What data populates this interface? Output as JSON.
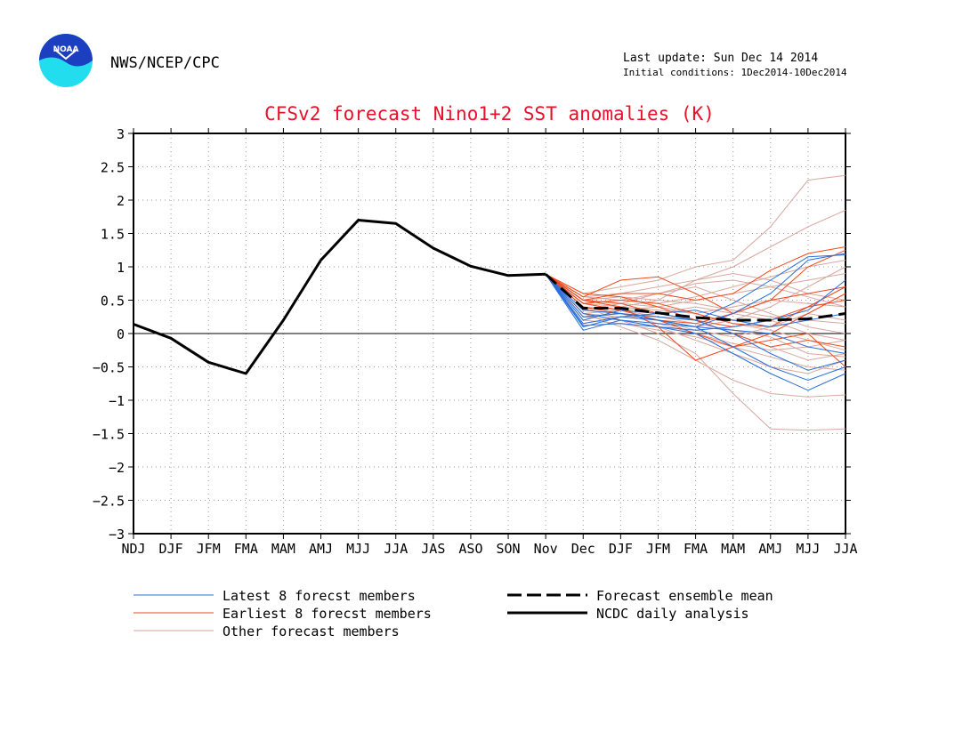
{
  "header": {
    "agency": "NWS/NCEP/CPC",
    "last_update": "Last update: Sun Dec 14 2014",
    "initial_conditions": "Initial conditions: 1Dec2014-10Dec2014",
    "logo_text": "NOAA"
  },
  "colors": {
    "title": "#e8102a",
    "latest": "#2a6fdb",
    "earliest": "#f04a1c",
    "other": "#d8a89e",
    "mean": "#000000",
    "analysis": "#000000",
    "logo_blue": "#1b3fbf",
    "logo_cyan": "#22ddee"
  },
  "chart_data": {
    "type": "line",
    "title": "CFSv2 forecast Nino1+2 SST anomalies (K)",
    "xlabel": "",
    "ylabel": "",
    "ylim": [
      -3,
      3
    ],
    "yticks": [
      "3",
      "2.5",
      "2",
      "1.5",
      "1",
      "0.5",
      "0",
      "−0.5",
      "−1",
      "−1.5",
      "−2",
      "−2.5",
      "−3"
    ],
    "categories": [
      "NDJ",
      "DJF",
      "JFM",
      "FMA",
      "MAM",
      "AMJ",
      "MJJ",
      "JJA",
      "JAS",
      "ASO",
      "SON",
      "Nov",
      "Dec",
      "DJF",
      "JFM",
      "FMA",
      "MAM",
      "AMJ",
      "MJJ",
      "JJA"
    ],
    "grid": true,
    "legend_entries": {
      "latest": "Latest 8 forecst members",
      "earliest": "Earliest 8 forecst members",
      "other": "Other forecast members",
      "mean": "Forecast ensemble mean",
      "analysis": "NCDC daily analysis"
    },
    "analysis": {
      "x": [
        0,
        1,
        2,
        3,
        4,
        5,
        6,
        7,
        8,
        9,
        10,
        11
      ],
      "values": [
        0.14,
        -0.07,
        -0.43,
        -0.6,
        0.2,
        1.1,
        1.7,
        1.65,
        1.28,
        1.01,
        0.87,
        0.89
      ]
    },
    "ensemble_mean": {
      "x": [
        11,
        12,
        13,
        14,
        15,
        16,
        17,
        18,
        19
      ],
      "values": [
        0.89,
        0.38,
        0.38,
        0.31,
        0.24,
        0.2,
        0.2,
        0.22,
        0.3
      ]
    },
    "forecast_x": [
      11,
      12,
      13,
      14,
      15,
      16,
      17,
      18,
      19
    ],
    "latest_members": [
      [
        0.89,
        0.05,
        0.2,
        0.1,
        0.0,
        -0.3,
        -0.6,
        -0.85,
        -0.6
      ],
      [
        0.89,
        0.1,
        0.25,
        0.2,
        0.1,
        -0.2,
        -0.5,
        -0.7,
        -0.5
      ],
      [
        0.89,
        0.2,
        0.35,
        0.3,
        0.2,
        0.0,
        -0.3,
        -0.55,
        -0.4
      ],
      [
        0.89,
        0.3,
        0.2,
        0.15,
        0.1,
        0.3,
        0.6,
        1.1,
        1.2
      ],
      [
        0.89,
        0.25,
        0.3,
        0.25,
        0.2,
        0.45,
        0.8,
        1.15,
        1.18
      ],
      [
        0.89,
        0.15,
        0.25,
        0.3,
        0.35,
        0.2,
        0.1,
        0.2,
        0.3
      ],
      [
        0.89,
        0.35,
        0.3,
        0.2,
        0.1,
        0.05,
        0.0,
        -0.2,
        -0.3
      ],
      [
        0.89,
        0.12,
        0.15,
        0.1,
        0.05,
        0.1,
        0.2,
        0.35,
        0.8
      ]
    ],
    "earliest_members": [
      [
        0.89,
        0.55,
        0.8,
        0.85,
        0.6,
        0.3,
        0.5,
        1.0,
        1.25
      ],
      [
        0.89,
        0.5,
        0.6,
        0.6,
        0.5,
        0.6,
        0.95,
        1.2,
        1.3
      ],
      [
        0.89,
        0.45,
        0.5,
        0.45,
        0.3,
        0.15,
        0.1,
        0.4,
        0.7
      ],
      [
        0.89,
        0.4,
        0.3,
        0.2,
        0.0,
        -0.2,
        -0.1,
        0.0,
        -0.5
      ],
      [
        0.89,
        0.5,
        0.4,
        0.1,
        -0.4,
        -0.2,
        0.0,
        0.3,
        0.6
      ],
      [
        0.89,
        0.45,
        0.35,
        0.2,
        0.15,
        0.3,
        0.5,
        0.6,
        0.7
      ],
      [
        0.89,
        0.6,
        0.55,
        0.4,
        0.2,
        0.1,
        0.2,
        0.4,
        0.5
      ],
      [
        0.89,
        0.5,
        0.45,
        0.3,
        0.2,
        0.0,
        -0.2,
        -0.1,
        -0.2
      ]
    ],
    "other_members": [
      [
        0.89,
        0.6,
        0.7,
        0.8,
        1.0,
        1.1,
        1.6,
        2.3,
        2.37
      ],
      [
        0.89,
        0.5,
        0.4,
        0.5,
        0.8,
        1.0,
        1.3,
        1.6,
        1.85
      ],
      [
        0.89,
        0.4,
        0.2,
        0.0,
        -0.3,
        -0.9,
        -1.43,
        -1.45,
        -1.43
      ],
      [
        0.89,
        0.3,
        0.1,
        -0.1,
        -0.4,
        -0.7,
        -0.9,
        -0.95,
        -0.92
      ],
      [
        0.89,
        0.45,
        0.5,
        0.6,
        0.7,
        0.5,
        0.3,
        0.1,
        0.0
      ],
      [
        0.89,
        0.35,
        0.3,
        0.25,
        0.2,
        0.0,
        -0.2,
        -0.4,
        -0.3
      ],
      [
        0.89,
        0.5,
        0.45,
        0.4,
        0.5,
        0.6,
        0.7,
        0.8,
        0.9
      ],
      [
        0.89,
        0.25,
        0.2,
        0.1,
        -0.1,
        -0.3,
        -0.5,
        -0.6,
        -0.4
      ],
      [
        0.89,
        0.55,
        0.6,
        0.7,
        0.8,
        0.9,
        0.8,
        0.6,
        0.5
      ],
      [
        0.89,
        0.4,
        0.35,
        0.3,
        0.4,
        0.3,
        0.2,
        0.0,
        -0.1
      ],
      [
        0.89,
        0.3,
        0.25,
        0.2,
        0.1,
        0.2,
        0.4,
        0.7,
        1.0
      ],
      [
        0.89,
        0.45,
        0.4,
        0.35,
        0.3,
        0.4,
        0.5,
        0.45,
        0.4
      ],
      [
        0.89,
        0.2,
        0.15,
        0.05,
        -0.05,
        -0.2,
        -0.35,
        -0.5,
        -0.55
      ],
      [
        0.89,
        0.5,
        0.55,
        0.5,
        0.45,
        0.35,
        0.25,
        0.2,
        0.15
      ],
      [
        0.89,
        0.35,
        0.45,
        0.6,
        0.75,
        0.8,
        0.7,
        0.55,
        0.4
      ],
      [
        0.89,
        0.4,
        0.3,
        0.15,
        0.0,
        -0.15,
        -0.25,
        -0.2,
        -0.1
      ],
      [
        0.89,
        0.3,
        0.35,
        0.4,
        0.3,
        0.15,
        0.05,
        -0.1,
        -0.25
      ],
      [
        0.89,
        0.55,
        0.5,
        0.45,
        0.55,
        0.7,
        0.85,
        1.0,
        1.1
      ],
      [
        0.89,
        0.25,
        0.3,
        0.2,
        0.05,
        -0.05,
        0.1,
        0.3,
        0.2
      ],
      [
        0.89,
        0.45,
        0.35,
        0.25,
        0.15,
        0.05,
        -0.05,
        -0.3,
        -0.35
      ]
    ]
  }
}
